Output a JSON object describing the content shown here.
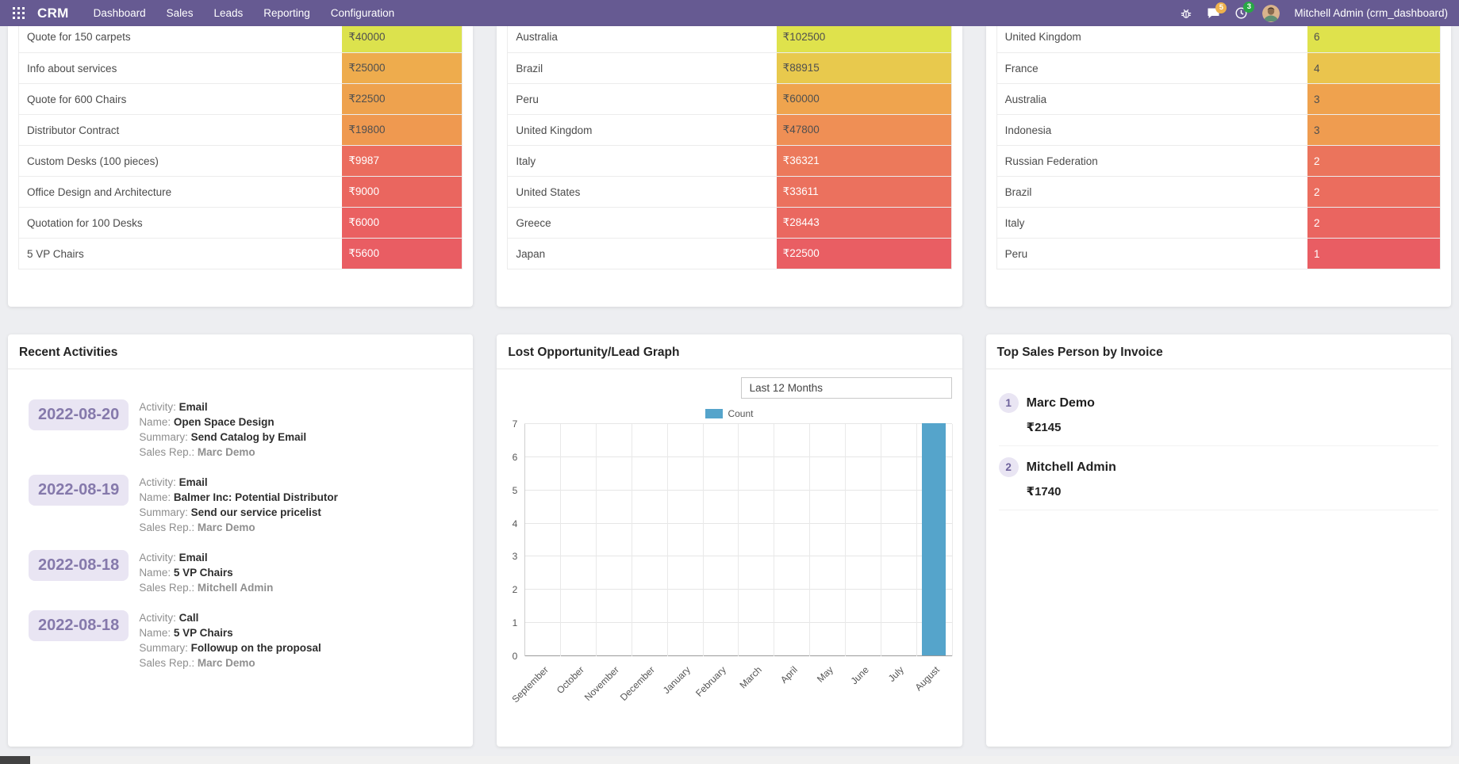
{
  "colors": {
    "navbar": "#665a92",
    "badge_messages": "#eeb14d",
    "badge_activities": "#28a745",
    "accent_lavender_bg": "#e9e5f3",
    "accent_lavender_text": "#8579ab"
  },
  "navbar": {
    "brand": "CRM",
    "menus": [
      "Dashboard",
      "Sales",
      "Leads",
      "Reporting",
      "Configuration"
    ],
    "messages_badge": "5",
    "activities_badge": "3",
    "user": "Mitchell Admin (crm_dashboard)"
  },
  "top_tables": [
    {
      "rows": [
        {
          "label": "Quote for 150 carpets",
          "value": "₹40000",
          "color": "#dce24d",
          "text_color": "#4f4f4f"
        },
        {
          "label": "Info about services",
          "value": "₹25000",
          "color": "#eeac4d",
          "text_color": "#4f4f4f"
        },
        {
          "label": "Quote for 600 Chairs",
          "value": "₹22500",
          "color": "#eea24e",
          "text_color": "#4f4f4f"
        },
        {
          "label": "Distributor Contract",
          "value": "₹19800",
          "color": "#ef9950",
          "text_color": "#4f4f4f"
        },
        {
          "label": "Custom Desks (100 pieces)",
          "value": "₹9987",
          "color": "#eb6c5e",
          "text_color": "#ffffff"
        },
        {
          "label": "Office Design and Architecture",
          "value": "₹9000",
          "color": "#ea665f",
          "text_color": "#ffffff"
        },
        {
          "label": "Quotation for 100 Desks",
          "value": "₹6000",
          "color": "#ea6061",
          "text_color": "#ffffff"
        },
        {
          "label": "5 VP Chairs",
          "value": "₹5600",
          "color": "#e95d63",
          "text_color": "#ffffff"
        }
      ]
    },
    {
      "rows": [
        {
          "label": "Australia",
          "value": "₹102500",
          "color": "#dfe24c",
          "text_color": "#4f4f4f"
        },
        {
          "label": "Brazil",
          "value": "₹88915",
          "color": "#e8c94d",
          "text_color": "#4f4f4f"
        },
        {
          "label": "Peru",
          "value": "₹60000",
          "color": "#efa44e",
          "text_color": "#4f4f4f"
        },
        {
          "label": "United Kingdom",
          "value": "₹47800",
          "color": "#ef8f55",
          "text_color": "#4f4f4f"
        },
        {
          "label": "Italy",
          "value": "₹36321",
          "color": "#ec795b",
          "text_color": "#ffffff"
        },
        {
          "label": "United States",
          "value": "₹33611",
          "color": "#eb715e",
          "text_color": "#ffffff"
        },
        {
          "label": "Greece",
          "value": "₹28443",
          "color": "#ea6860",
          "text_color": "#ffffff"
        },
        {
          "label": "Japan",
          "value": "₹22500",
          "color": "#e95e63",
          "text_color": "#ffffff"
        }
      ]
    },
    {
      "rows": [
        {
          "label": "United Kingdom",
          "value": "6",
          "color": "#dfe24c",
          "text_color": "#4f4f4f"
        },
        {
          "label": "France",
          "value": "4",
          "color": "#eac44d",
          "text_color": "#4f4f4f"
        },
        {
          "label": "Australia",
          "value": "3",
          "color": "#efa24e",
          "text_color": "#4f4f4f"
        },
        {
          "label": "Indonesia",
          "value": "3",
          "color": "#ef9c50",
          "text_color": "#4f4f4f"
        },
        {
          "label": "Russian Federation",
          "value": "2",
          "color": "#eb745c",
          "text_color": "#ffffff"
        },
        {
          "label": "Brazil",
          "value": "2",
          "color": "#eb6d5e",
          "text_color": "#ffffff"
        },
        {
          "label": "Italy",
          "value": "2",
          "color": "#ea6560",
          "text_color": "#ffffff"
        },
        {
          "label": "Peru",
          "value": "1",
          "color": "#e95d63",
          "text_color": "#ffffff"
        }
      ]
    }
  ],
  "recent_activities": {
    "title": "Recent Activities",
    "labels": {
      "activity": "Activity:",
      "name": "Name:",
      "summary": "Summary:",
      "rep": "Sales Rep.:"
    },
    "items": [
      {
        "date": "2022-08-20",
        "activity": "Email",
        "name": "Open Space Design",
        "summary": "Send Catalog by Email",
        "rep": "Marc Demo"
      },
      {
        "date": "2022-08-19",
        "activity": "Email",
        "name": "Balmer Inc: Potential Distributor",
        "summary": "Send our service pricelist",
        "rep": "Marc Demo"
      },
      {
        "date": "2022-08-18",
        "activity": "Email",
        "name": "5 VP Chairs",
        "rep": "Mitchell Admin"
      },
      {
        "date": "2022-08-18",
        "activity": "Call",
        "name": "5 VP Chairs",
        "summary": "Followup on the proposal",
        "rep": "Marc Demo"
      }
    ]
  },
  "chart_data": {
    "type": "bar",
    "title": "Lost Opportunity/Lead Graph",
    "filter_value": "Last 12 Months",
    "legend": [
      "Count"
    ],
    "legend_position": "top",
    "categories": [
      "September",
      "October",
      "November",
      "December",
      "January",
      "February",
      "March",
      "April",
      "May",
      "June",
      "July",
      "August"
    ],
    "values": [
      0,
      0,
      0,
      0,
      0,
      0,
      0,
      0,
      0,
      0,
      0,
      7
    ],
    "xlabel": "",
    "ylabel": "",
    "ylim": [
      0,
      7
    ],
    "yticks": [
      0,
      1,
      2,
      3,
      4,
      5,
      6,
      7
    ],
    "grid": true,
    "bar_color": "#55a4cb"
  },
  "top_sales": {
    "title": "Top Sales Person by Invoice",
    "items": [
      {
        "rank": "1",
        "name": "Marc Demo",
        "amount": "₹2145"
      },
      {
        "rank": "2",
        "name": "Mitchell Admin",
        "amount": "₹1740"
      }
    ]
  }
}
